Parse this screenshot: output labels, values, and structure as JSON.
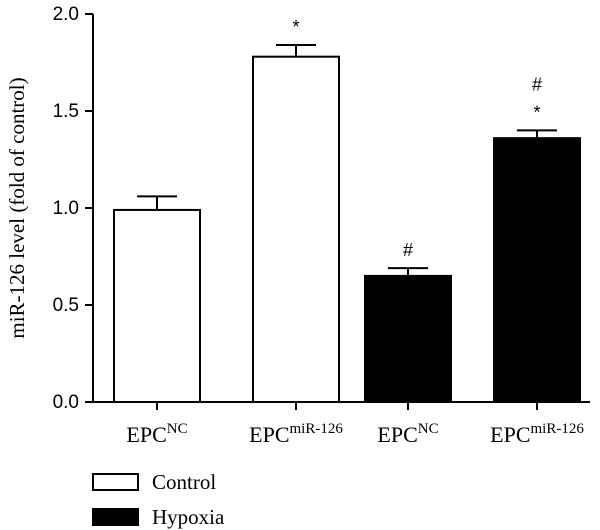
{
  "chart_data": {
    "type": "bar",
    "ylabel": "miR-126 level (fold of control)",
    "ylim": [
      0,
      2.0
    ],
    "yticks": [
      "0.0",
      "0.5",
      "1.0",
      "1.5",
      "2.0"
    ],
    "categories": [
      {
        "base": "EPC",
        "sup": "NC"
      },
      {
        "base": "EPC",
        "sup": "miR-126"
      },
      {
        "base": "EPC",
        "sup": "NC"
      },
      {
        "base": "EPC",
        "sup": "miR-126"
      }
    ],
    "bars": [
      {
        "value": 0.99,
        "error": 0.07,
        "group": "Control",
        "annotations": []
      },
      {
        "value": 1.78,
        "error": 0.06,
        "group": "Control",
        "annotations": [
          "*"
        ]
      },
      {
        "value": 0.65,
        "error": 0.04,
        "group": "Hypoxia",
        "annotations": [
          "#"
        ]
      },
      {
        "value": 1.36,
        "error": 0.04,
        "group": "Hypoxia",
        "annotations": [
          "*",
          "#"
        ]
      }
    ],
    "legend": [
      {
        "label": "Control",
        "color": "#ffffff"
      },
      {
        "label": "Hypoxia",
        "color": "#000000"
      }
    ],
    "grid": false,
    "legend_position": "bottom-left"
  }
}
